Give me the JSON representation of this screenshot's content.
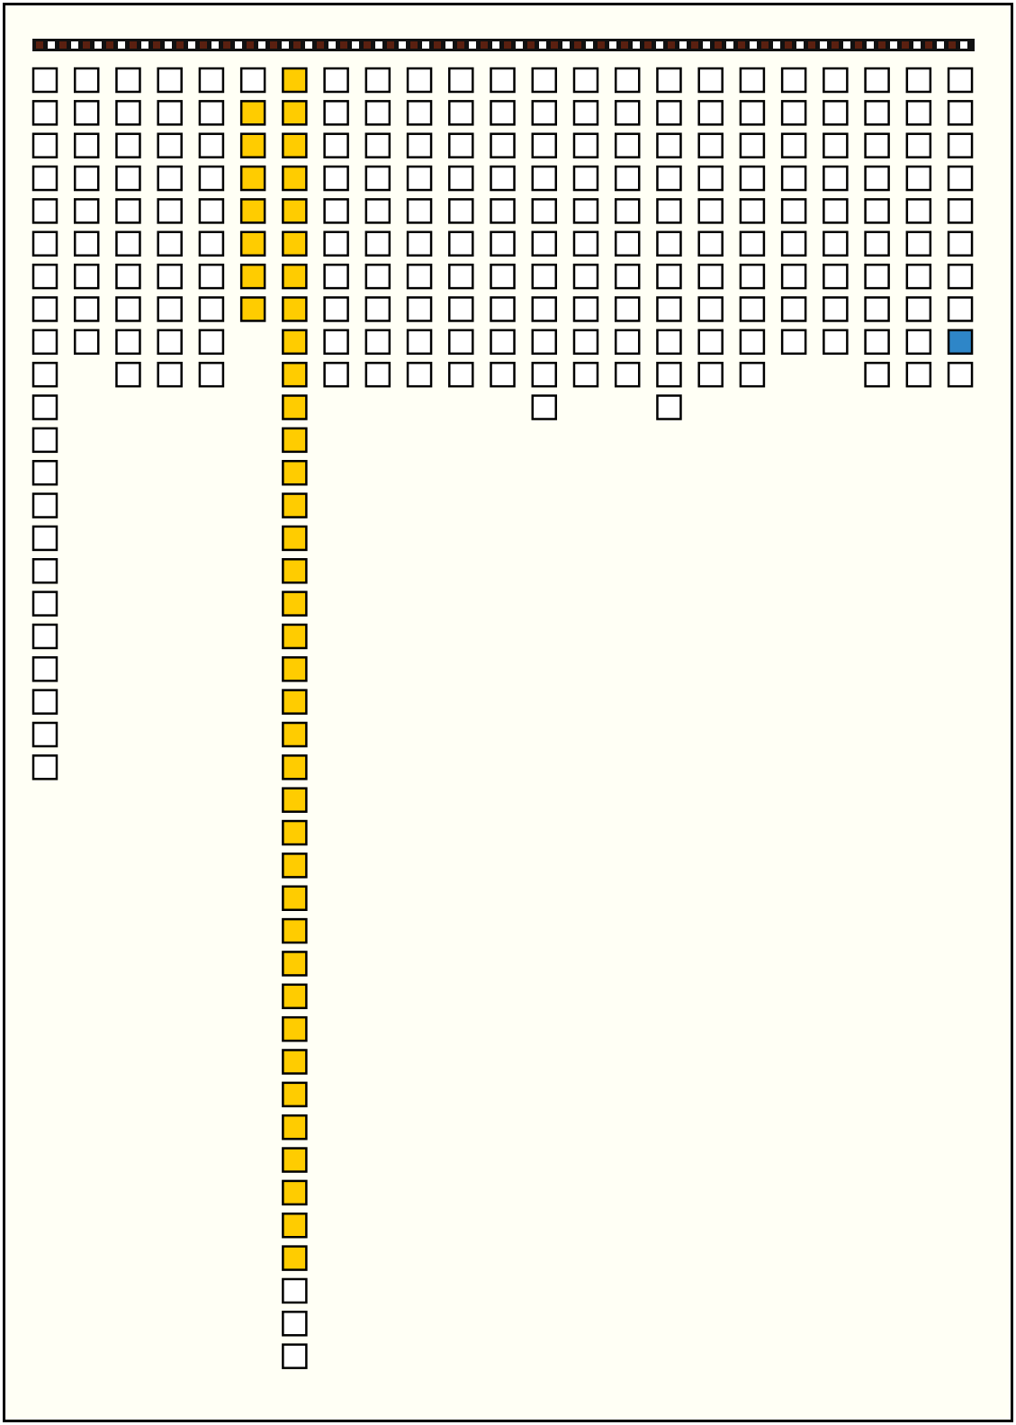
{
  "palette": {
    "empty": "#ffffff",
    "yellow": "#ffcc00",
    "blue": "#2e86c8"
  },
  "columns": [
    {
      "runs": [
        [
          "empty",
          22
        ]
      ]
    },
    {
      "runs": [
        [
          "empty",
          9
        ]
      ]
    },
    {
      "runs": [
        [
          "empty",
          10
        ]
      ]
    },
    {
      "runs": [
        [
          "empty",
          10
        ]
      ]
    },
    {
      "runs": [
        [
          "empty",
          10
        ]
      ]
    },
    {
      "runs": [
        [
          "empty",
          1
        ],
        [
          "yellow",
          7
        ]
      ]
    },
    {
      "runs": [
        [
          "yellow",
          37
        ],
        [
          "empty",
          3
        ]
      ]
    },
    {
      "runs": [
        [
          "empty",
          10
        ]
      ]
    },
    {
      "runs": [
        [
          "empty",
          10
        ]
      ]
    },
    {
      "runs": [
        [
          "empty",
          10
        ]
      ]
    },
    {
      "runs": [
        [
          "empty",
          10
        ]
      ]
    },
    {
      "runs": [
        [
          "empty",
          10
        ]
      ]
    },
    {
      "runs": [
        [
          "empty",
          11
        ]
      ]
    },
    {
      "runs": [
        [
          "empty",
          10
        ]
      ]
    },
    {
      "runs": [
        [
          "empty",
          10
        ]
      ]
    },
    {
      "runs": [
        [
          "empty",
          11
        ]
      ]
    },
    {
      "runs": [
        [
          "empty",
          10
        ]
      ]
    },
    {
      "runs": [
        [
          "empty",
          10
        ]
      ]
    },
    {
      "runs": [
        [
          "empty",
          9
        ]
      ]
    },
    {
      "runs": [
        [
          "empty",
          9
        ]
      ]
    },
    {
      "runs": [
        [
          "empty",
          10
        ]
      ]
    },
    {
      "runs": [
        [
          "empty",
          10
        ]
      ]
    },
    {
      "runs": [
        [
          "empty",
          8
        ],
        [
          "blue",
          1
        ],
        [
          "empty",
          1
        ]
      ]
    }
  ]
}
